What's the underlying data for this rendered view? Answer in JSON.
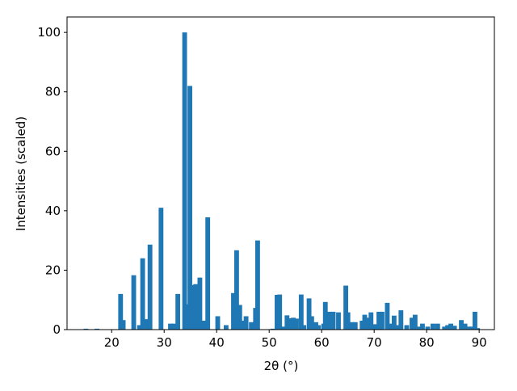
{
  "chart_data": {
    "type": "bar",
    "xlabel": "2θ (°)",
    "ylabel": "Intensities (scaled)",
    "color": "#1f77b4",
    "bar_width": 0.9,
    "x": [
      15.1,
      17.2,
      21.7,
      22.2,
      24.2,
      25.3,
      25.9,
      26.8,
      27.3,
      29.4,
      31.2,
      31.8,
      32.6,
      33.9,
      34.3,
      34.9,
      35.5,
      36.0,
      36.8,
      37.6,
      38.3,
      40.2,
      41.8,
      43.2,
      43.8,
      44.4,
      45.1,
      45.6,
      46.6,
      47.4,
      47.8,
      50.7,
      51.5,
      52.0,
      52.8,
      53.4,
      54.0,
      54.6,
      55.2,
      56.1,
      56.6,
      57.6,
      58.1,
      58.9,
      59.4,
      60.4,
      60.7,
      61.5,
      62.2,
      63.2,
      64.6,
      65.0,
      65.8,
      66.4,
      67.7,
      68.2,
      68.8,
      69.4,
      70.2,
      70.9,
      71.5,
      72.5,
      73.2,
      73.8,
      74.3,
      75.1,
      76.2,
      77.2,
      77.8,
      78.6,
      79.2,
      80.2,
      81.2,
      82.1,
      83.4,
      84.0,
      84.6,
      85.3,
      86.6,
      87.3,
      88.0,
      88.6,
      89.2,
      89.7
    ],
    "values": [
      0.3,
      0.3,
      12,
      3.2,
      18.3,
      1.5,
      24,
      3.5,
      28.6,
      41,
      2,
      2,
      12,
      100,
      8.5,
      82,
      15,
      15.3,
      17.5,
      3,
      37.8,
      4.5,
      1.5,
      12.3,
      26.7,
      8.3,
      3,
      4.5,
      2.5,
      7.3,
      30,
      0.3,
      11.7,
      11.8,
      1,
      4.8,
      3.8,
      4,
      3.7,
      11.8,
      1.5,
      10.5,
      4.5,
      2.5,
      1.5,
      2,
      9.3,
      6,
      6,
      5.8,
      14.8,
      5.8,
      2.5,
      2.5,
      3,
      5,
      4,
      5.8,
      1.8,
      6,
      6,
      9,
      2,
      4.7,
      1.5,
      6.5,
      1.5,
      4,
      5,
      1,
      2,
      1,
      2,
      2,
      1,
      1.5,
      2,
      1.3,
      3.2,
      2,
      1,
      1,
      6,
      0.5
    ],
    "xlim": [
      11.5,
      92.9
    ],
    "ylim": [
      0,
      105.2
    ],
    "xticks": [
      20,
      30,
      40,
      50,
      60,
      70,
      80,
      90
    ],
    "yticks": [
      0,
      20,
      40,
      60,
      80,
      100
    ]
  }
}
